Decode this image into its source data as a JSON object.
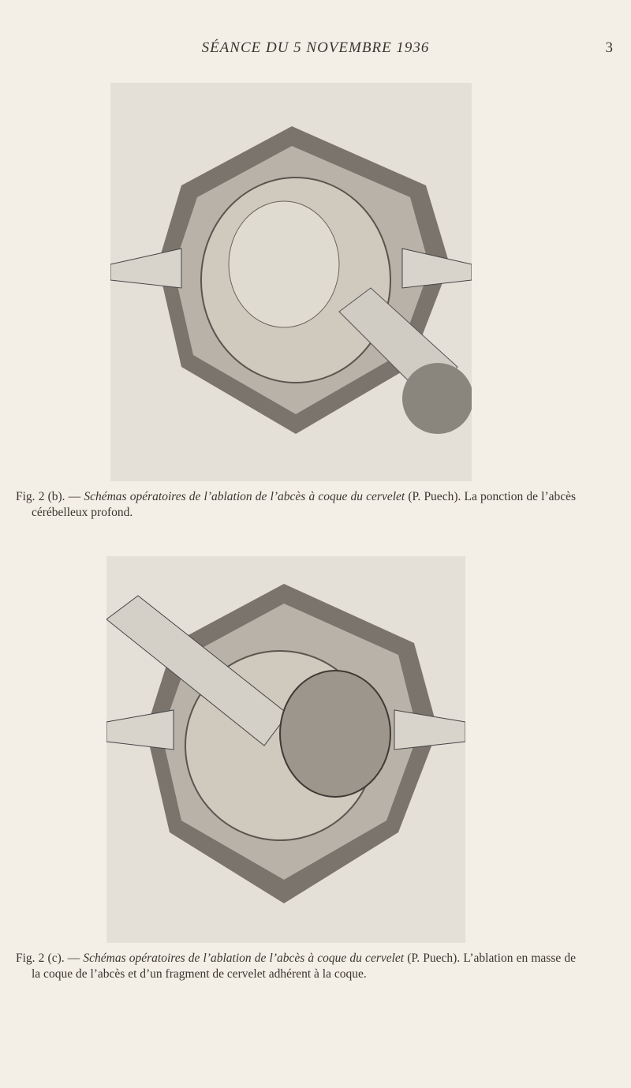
{
  "header": {
    "title": "SÉANCE DU 5 NOVEMBRE 1936",
    "page": "3"
  },
  "figures": [
    {
      "label": "Fig. 2 (b). —",
      "italic": "Schémas opératoires de l’ablation de l’abcès à coque du cervelet",
      "text": "(P. Puech). La ponction de l’abcès cérébelleux profond."
    },
    {
      "label": "Fig. 2 (c). —",
      "italic": "Schémas opératoires de l’ablation de l’abcès à coque du cervelet",
      "text": "(P. Puech). L’ablation en masse de la coque de l’abcès et d’un fragment de cervelet adhérent à la coque."
    }
  ]
}
